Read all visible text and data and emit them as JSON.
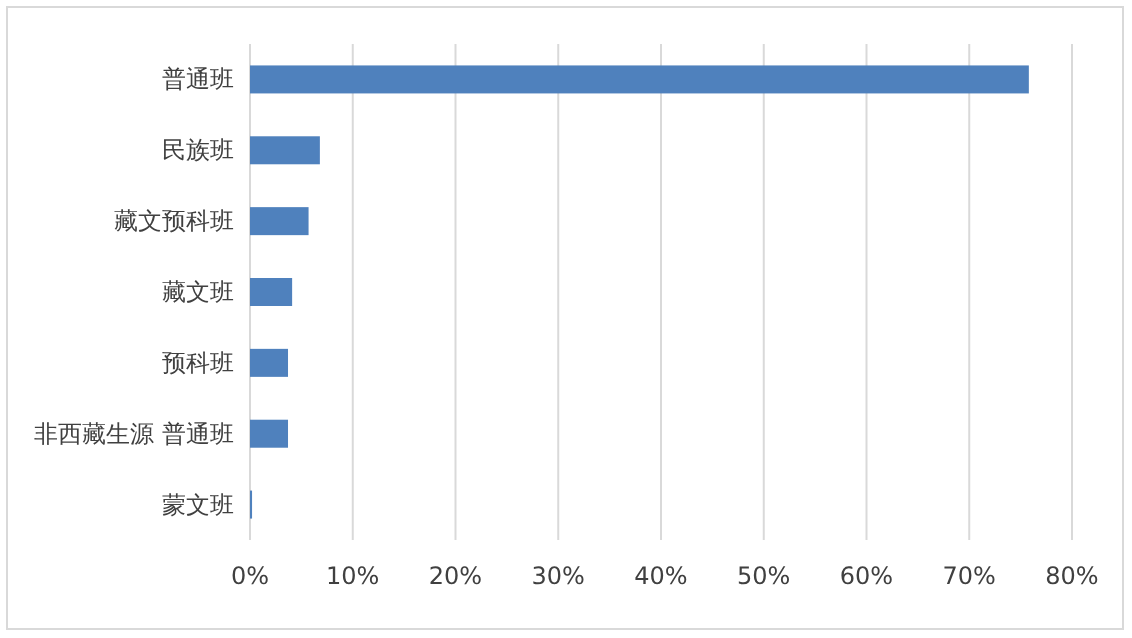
{
  "chart_data": {
    "type": "bar",
    "orientation": "horizontal",
    "categories": [
      "普通班",
      "民族班",
      "藏文预科班",
      "藏文班",
      "预科班",
      "非西藏生源 普通班",
      "蒙文班"
    ],
    "values": [
      75.8,
      6.8,
      5.7,
      4.1,
      3.7,
      3.7,
      0.2
    ],
    "color": "#4f81bd",
    "xlim": [
      0,
      80
    ],
    "xticks": [
      {
        "value": 0,
        "label": "0%"
      },
      {
        "value": 10,
        "label": "10%"
      },
      {
        "value": 20,
        "label": "20%"
      },
      {
        "value": 30,
        "label": "30%"
      },
      {
        "value": 40,
        "label": "40%"
      },
      {
        "value": 50,
        "label": "50%"
      },
      {
        "value": 60,
        "label": "60%"
      },
      {
        "value": 70,
        "label": "70%"
      },
      {
        "value": 80,
        "label": "80%"
      }
    ],
    "grid": "x"
  }
}
